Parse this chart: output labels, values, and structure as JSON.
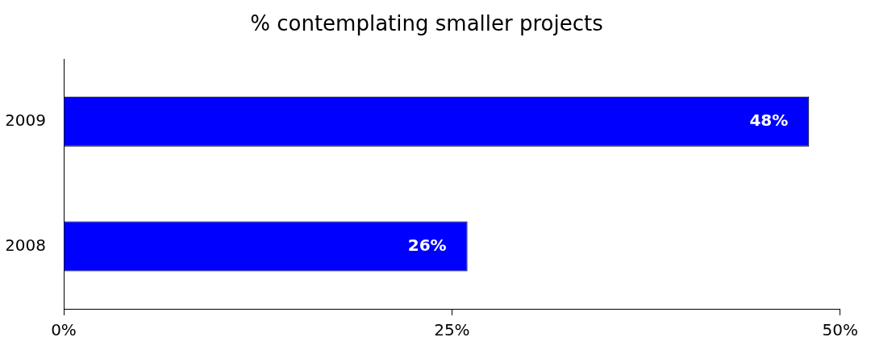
{
  "chart_data": {
    "type": "bar",
    "orientation": "horizontal",
    "title": "% contemplating smaller projects",
    "categories": [
      "2009",
      "2008"
    ],
    "values": [
      48,
      26
    ],
    "color": "#0000ff",
    "value_labels": [
      "48%",
      "26%"
    ],
    "xlim": [
      0,
      50
    ],
    "xticks": [
      {
        "value": 0,
        "label": "0%"
      },
      {
        "value": 25,
        "label": "25%"
      },
      {
        "value": 50,
        "label": "50%"
      }
    ],
    "grid": false,
    "legend": false
  }
}
